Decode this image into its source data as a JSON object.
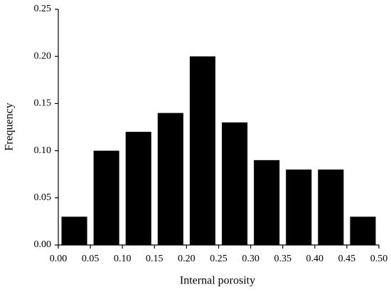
{
  "chart_data": {
    "type": "histogram",
    "x_label": "Internal porosity",
    "y_label": "Frequency",
    "bins": [
      0,
      0.05,
      0.1,
      0.15,
      0.2,
      0.25,
      0.3,
      0.35,
      0.4,
      0.45,
      0.5
    ],
    "values": [
      0.03,
      0.1,
      0.12,
      0.14,
      0.2,
      0.13,
      0.09,
      0.08,
      0.08,
      0.03
    ],
    "color": "#000000",
    "xlim": [
      0,
      0.5
    ],
    "xticks": [
      {
        "value": 0,
        "label": "0.00"
      },
      {
        "value": 0.05,
        "label": "0.05"
      },
      {
        "value": 0.1,
        "label": "0.10"
      },
      {
        "value": 0.15,
        "label": "0.15"
      },
      {
        "value": 0.2,
        "label": "0.20"
      },
      {
        "value": 0.25,
        "label": "0.25"
      },
      {
        "value": 0.3,
        "label": "0.30"
      },
      {
        "value": 0.35,
        "label": "0.35"
      },
      {
        "value": 0.4,
        "label": "0.40"
      },
      {
        "value": 0.45,
        "label": "0.45"
      },
      {
        "value": 0.5,
        "label": "0.50"
      }
    ],
    "ylim": [
      0,
      0.25
    ],
    "yticks": [
      {
        "value": 0,
        "label": "0.00"
      },
      {
        "value": 0.05,
        "label": "0.05"
      },
      {
        "value": 0.1,
        "label": "0.10"
      },
      {
        "value": 0.15,
        "label": "0.15"
      },
      {
        "value": 0.2,
        "label": "0.20"
      },
      {
        "value": 0.25,
        "label": "0.25"
      }
    ]
  }
}
